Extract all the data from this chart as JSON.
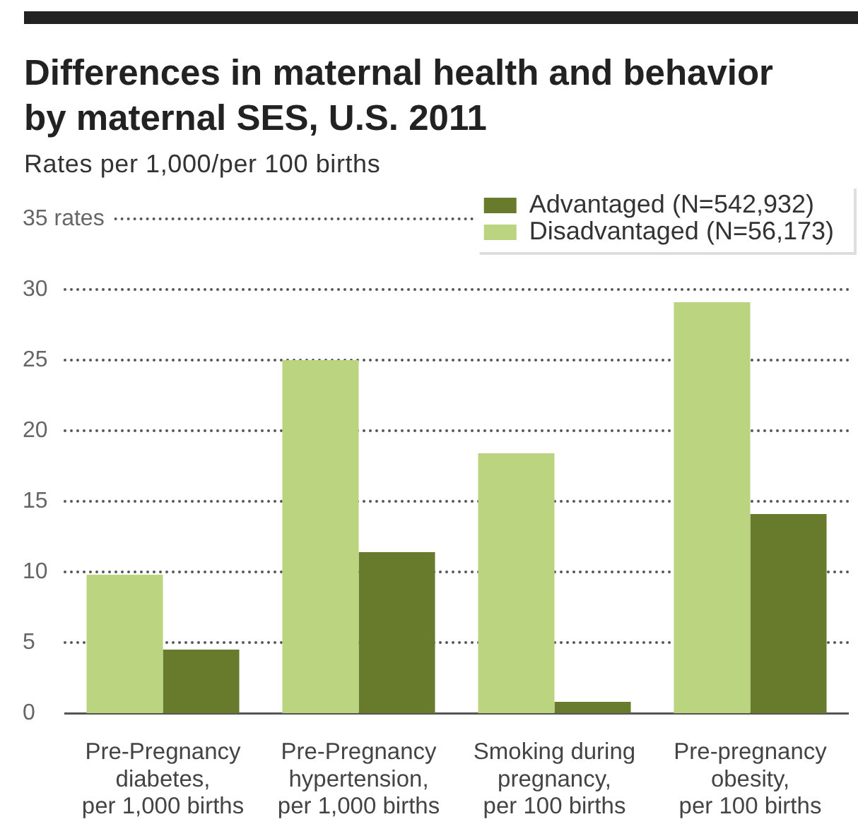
{
  "chart_data": {
    "type": "bar",
    "title": "Differences in maternal health and behavior by maternal SES, U.S. 2011",
    "subtitle": "Rates per 1,000/per 100 births",
    "categories": [
      "Pre-Pregnancy diabetes, per 1,000 births",
      "Pre-Pregnancy hypertension, per 1,000 births",
      "Smoking during pregnancy, per 100 births",
      "Pre-pregnancy obesity, per 100 births"
    ],
    "series": [
      {
        "name": "Disadvantaged (N=56,173)",
        "color": "#bad480",
        "values": [
          9.8,
          25.0,
          18.4,
          29.1
        ]
      },
      {
        "name": "Advantaged (N=542,932)",
        "color": "#687a2c",
        "values": [
          4.5,
          11.4,
          0.8,
          14.1
        ]
      }
    ],
    "ylim": [
      0,
      35
    ],
    "yticks": [
      0,
      5,
      10,
      15,
      20,
      25,
      30,
      {
        "value": 35,
        "label": "35 rates"
      }
    ],
    "grid": "y",
    "legend": "top right"
  }
}
